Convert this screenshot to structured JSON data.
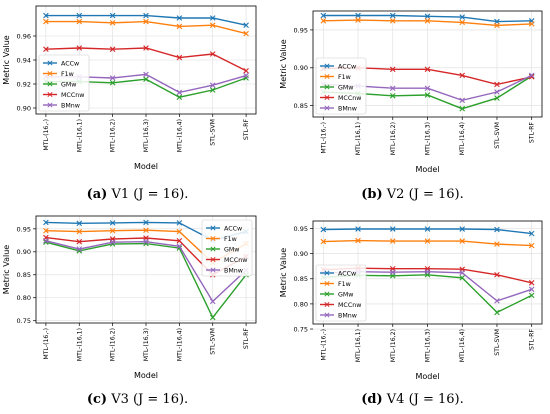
{
  "categories": [
    "MTL-(16,-)",
    "MTL-(16,1)",
    "MTL-(16,2)",
    "MTL-(16,3)",
    "MTL-(16,4)",
    "STL-SVM",
    "STL-RF"
  ],
  "legend_labels": [
    "ACCw",
    "F1w",
    "GMw",
    "MCCnw",
    "BMnw"
  ],
  "colors": [
    "#1f77b4",
    "#ff7f0e",
    "#2ca02c",
    "#d62728",
    "#9467bd"
  ],
  "captions": [
    {
      "label": "(a)",
      "text": "V1 (J = 16)."
    },
    {
      "label": "(b)",
      "text": "V2 (J = 16)."
    },
    {
      "label": "(c)",
      "text": "V3 (J = 16)."
    },
    {
      "label": "(d)",
      "text": "V4 (J = 16)."
    }
  ],
  "chart_data": [
    {
      "type": "line",
      "xlabel": "Model",
      "ylabel": "Metric Value",
      "ylim": [
        0.895,
        0.985
      ],
      "yticks": [
        0.9,
        0.92,
        0.94,
        0.96
      ],
      "legend": "bottom-left",
      "grid": true,
      "series": [
        {
          "name": "ACCw",
          "values": [
            0.977,
            0.977,
            0.977,
            0.977,
            0.975,
            0.975,
            0.969
          ]
        },
        {
          "name": "F1w",
          "values": [
            0.972,
            0.972,
            0.971,
            0.972,
            0.968,
            0.969,
            0.962
          ]
        },
        {
          "name": "GMw",
          "values": [
            0.922,
            0.922,
            0.921,
            0.924,
            0.909,
            0.915,
            0.925
          ]
        },
        {
          "name": "MCCnw",
          "values": [
            0.949,
            0.95,
            0.949,
            0.95,
            0.942,
            0.945,
            0.931
          ]
        },
        {
          "name": "BMnw",
          "values": [
            0.926,
            0.926,
            0.925,
            0.928,
            0.913,
            0.919,
            0.927
          ]
        }
      ]
    },
    {
      "type": "line",
      "xlabel": "Model",
      "ylabel": "Metric Value",
      "ylim": [
        0.835,
        0.975
      ],
      "yticks": [
        0.85,
        0.9,
        0.95
      ],
      "legend": "bottom-left",
      "grid": true,
      "series": [
        {
          "name": "ACCw",
          "values": [
            0.969,
            0.969,
            0.969,
            0.968,
            0.967,
            0.961,
            0.962
          ]
        },
        {
          "name": "F1w",
          "values": [
            0.962,
            0.963,
            0.962,
            0.962,
            0.96,
            0.956,
            0.958
          ]
        },
        {
          "name": "GMw",
          "values": [
            0.868,
            0.866,
            0.863,
            0.864,
            0.846,
            0.86,
            0.889
          ]
        },
        {
          "name": "MCCnw",
          "values": [
            0.899,
            0.9,
            0.898,
            0.898,
            0.89,
            0.878,
            0.888
          ]
        },
        {
          "name": "BMnw",
          "values": [
            0.878,
            0.876,
            0.873,
            0.873,
            0.857,
            0.868,
            0.89
          ]
        }
      ]
    },
    {
      "type": "line",
      "xlabel": "Model",
      "ylabel": "Metric Value",
      "ylim": [
        0.745,
        0.978
      ],
      "yticks": [
        0.75,
        0.8,
        0.85,
        0.9,
        0.95
      ],
      "legend": "top-right",
      "grid": true,
      "series": [
        {
          "name": "ACCw",
          "values": [
            0.964,
            0.962,
            0.963,
            0.964,
            0.963,
            0.925,
            0.944
          ]
        },
        {
          "name": "F1w",
          "values": [
            0.946,
            0.944,
            0.946,
            0.947,
            0.944,
            0.876,
            0.918
          ]
        },
        {
          "name": "GMw",
          "values": [
            0.921,
            0.902,
            0.917,
            0.918,
            0.908,
            0.757,
            0.85
          ]
        },
        {
          "name": "MCCnw",
          "values": [
            0.931,
            0.922,
            0.928,
            0.93,
            0.924,
            0.85,
            0.89
          ]
        },
        {
          "name": "BMnw",
          "values": [
            0.924,
            0.906,
            0.921,
            0.922,
            0.912,
            0.792,
            0.86
          ]
        }
      ]
    },
    {
      "type": "line",
      "xlabel": "Model",
      "ylabel": "Metric Value",
      "ylim": [
        0.76,
        0.965
      ],
      "yticks": [
        0.75,
        0.8,
        0.85,
        0.9,
        0.95
      ],
      "legend": "bottom-left",
      "grid": true,
      "series": [
        {
          "name": "ACCw",
          "values": [
            0.948,
            0.949,
            0.949,
            0.949,
            0.949,
            0.948,
            0.94
          ]
        },
        {
          "name": "F1w",
          "values": [
            0.924,
            0.926,
            0.925,
            0.925,
            0.925,
            0.919,
            0.916
          ]
        },
        {
          "name": "GMw",
          "values": [
            0.853,
            0.857,
            0.856,
            0.858,
            0.852,
            0.783,
            0.817
          ]
        },
        {
          "name": "MCCnw",
          "values": [
            0.868,
            0.871,
            0.87,
            0.87,
            0.869,
            0.858,
            0.842
          ]
        },
        {
          "name": "BMnw",
          "values": [
            0.861,
            0.864,
            0.863,
            0.864,
            0.862,
            0.806,
            0.829
          ]
        }
      ]
    }
  ]
}
